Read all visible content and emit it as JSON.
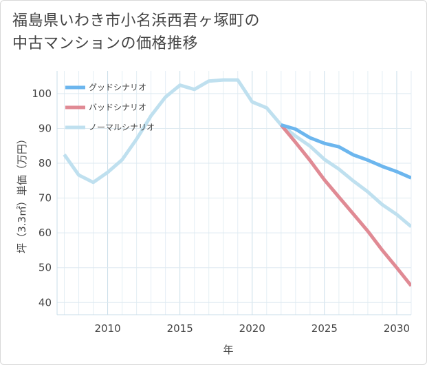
{
  "chart_data": {
    "type": "line",
    "title_lines": [
      "福島県いわき市小名浜西君ヶ塚町の",
      "中古マンションの価格推移"
    ],
    "xlabel": "年",
    "ylabel": "坪（3.3㎡）単価（万円）",
    "xlim": [
      2006.5,
      2031
    ],
    "ylim": [
      36.5,
      106.5
    ],
    "x_ticks": [
      2010,
      2015,
      2020,
      2025,
      2030
    ],
    "y_ticks": [
      40,
      50,
      60,
      70,
      80,
      90,
      100
    ],
    "legend_position": "top-left",
    "series": [
      {
        "name": "グッドシナリオ",
        "color": "#6cb6ee",
        "x": [
          2022,
          2023,
          2024,
          2025,
          2026,
          2027,
          2028,
          2029,
          2030,
          2031
        ],
        "y": [
          91.0,
          89.8,
          87.3,
          85.7,
          84.7,
          82.4,
          80.9,
          79.1,
          77.6,
          75.8
        ]
      },
      {
        "name": "バッドシナリオ",
        "color": "#e08a94",
        "x": [
          2022,
          2023,
          2024,
          2025,
          2026,
          2027,
          2028,
          2029,
          2030,
          2031
        ],
        "y": [
          91.0,
          86.0,
          80.8,
          75.2,
          70.3,
          65.4,
          60.5,
          55.0,
          50.0,
          44.8
        ]
      },
      {
        "name": "ノーマルシナリオ",
        "color": "#bfe0ef",
        "x": [
          2007,
          2008,
          2009,
          2010,
          2011,
          2012,
          2013,
          2014,
          2015,
          2016,
          2017,
          2018,
          2019,
          2020,
          2021,
          2022,
          2023,
          2024,
          2025,
          2026,
          2027,
          2028,
          2029,
          2030,
          2031
        ],
        "y": [
          82.5,
          76.6,
          74.5,
          77.4,
          81.0,
          86.9,
          93.6,
          99.0,
          102.4,
          101.2,
          103.6,
          103.9,
          103.9,
          97.6,
          95.9,
          91.0,
          87.8,
          84.9,
          81.1,
          78.3,
          74.9,
          71.8,
          68.1,
          65.3,
          61.8
        ]
      }
    ]
  }
}
